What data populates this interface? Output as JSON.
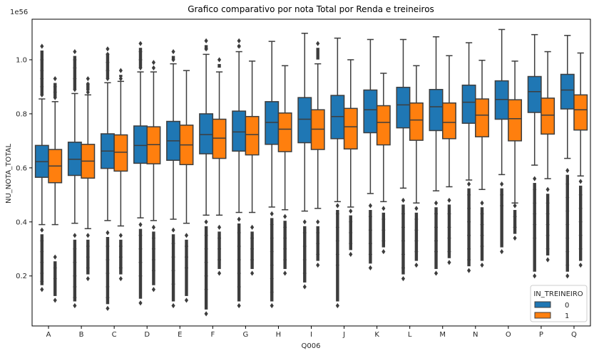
{
  "chart_data": {
    "type": "box",
    "title": "Grafico comparativo por nota Total por Renda e treineiros",
    "xlabel": "Q006",
    "ylabel": "NU_NOTA_TOTAL",
    "y_scale_label": "1e56",
    "ylim": [
      0.015,
      1.15
    ],
    "yticks": [
      "0.2",
      "0.4",
      "0.6",
      "0.8",
      "1.0"
    ],
    "ytick_values": [
      0.2,
      0.4,
      0.6,
      0.8,
      1.0
    ],
    "categories": [
      "A",
      "B",
      "C",
      "D",
      "E",
      "F",
      "G",
      "H",
      "I",
      "J",
      "K",
      "L",
      "M",
      "N",
      "O",
      "P",
      "Q"
    ],
    "legend": {
      "title": "IN_TREINEIRO",
      "position": "lower right"
    },
    "series": [
      {
        "name": "0",
        "color": "#1f77b4",
        "boxes": [
          {
            "whislo": 0.39,
            "q1": 0.565,
            "med": 0.623,
            "q3": 0.683,
            "whishi": 0.855,
            "fliers_low": [
              0.15,
              0.18,
              0.21,
              0.25,
              0.29,
              0.33,
              0.37
            ],
            "fliers_high": [
              0.87,
              0.9,
              0.93,
              0.96,
              1.0,
              1.05
            ]
          },
          {
            "whislo": 0.395,
            "q1": 0.572,
            "med": 0.632,
            "q3": 0.695,
            "whishi": 0.875,
            "fliers_low": [
              0.09,
              0.12,
              0.16,
              0.2,
              0.25,
              0.3,
              0.35
            ],
            "fliers_high": [
              0.89,
              0.93,
              0.97,
              1.0,
              1.03
            ]
          },
          {
            "whislo": 0.405,
            "q1": 0.598,
            "med": 0.662,
            "q3": 0.726,
            "whishi": 0.915,
            "fliers_low": [
              0.08,
              0.12,
              0.16,
              0.21,
              0.26,
              0.31,
              0.36
            ],
            "fliers_high": [
              0.93,
              0.96,
              0.99,
              1.02,
              1.04
            ]
          },
          {
            "whislo": 0.415,
            "q1": 0.617,
            "med": 0.683,
            "q3": 0.755,
            "whishi": 0.955,
            "fliers_low": [
              0.1,
              0.2,
              0.25,
              0.3,
              0.35,
              0.39
            ],
            "fliers_high": [
              0.97,
              1.0,
              1.03,
              1.06
            ]
          },
          {
            "whislo": 0.41,
            "q1": 0.628,
            "med": 0.7,
            "q3": 0.772,
            "whishi": 0.985,
            "fliers_low": [
              0.09,
              0.17,
              0.22,
              0.27,
              0.32,
              0.37
            ],
            "fliers_high": [
              1.0,
              1.03
            ]
          },
          {
            "whislo": 0.425,
            "q1": 0.652,
            "med": 0.723,
            "q3": 0.8,
            "whishi": 1.02,
            "fliers_low": [
              0.06,
              0.15,
              0.2,
              0.25,
              0.3,
              0.35,
              0.4
            ],
            "fliers_high": [
              1.04,
              1.07
            ]
          },
          {
            "whislo": 0.435,
            "q1": 0.662,
            "med": 0.733,
            "q3": 0.81,
            "whishi": 1.03,
            "fliers_low": [
              0.09,
              0.16,
              0.21,
              0.26,
              0.31,
              0.36,
              0.41
            ],
            "fliers_high": [
              1.05,
              1.07
            ]
          },
          {
            "whislo": 0.455,
            "q1": 0.687,
            "med": 0.768,
            "q3": 0.845,
            "whishi": 1.068,
            "fliers_low": [
              0.09,
              0.14,
              0.19,
              0.24,
              0.29,
              0.34,
              0.39,
              0.43
            ],
            "fliers_high": []
          },
          {
            "whislo": 0.44,
            "q1": 0.693,
            "med": 0.78,
            "q3": 0.86,
            "whishi": 1.098,
            "fliers_low": [
              0.16,
              0.21,
              0.26,
              0.31,
              0.36,
              0.4
            ],
            "fliers_high": []
          },
          {
            "whislo": 0.475,
            "q1": 0.708,
            "med": 0.79,
            "q3": 0.868,
            "whishi": 1.08,
            "fliers_low": [
              0.09,
              0.24,
              0.28,
              0.33,
              0.38,
              0.43,
              0.46
            ],
            "fliers_high": []
          },
          {
            "whislo": 0.505,
            "q1": 0.73,
            "med": 0.815,
            "q3": 0.888,
            "whishi": 1.075,
            "fliers_low": [
              0.23,
              0.28,
              0.32,
              0.37,
              0.42,
              0.46
            ],
            "fliers_high": []
          },
          {
            "whislo": 0.525,
            "q1": 0.748,
            "med": 0.833,
            "q3": 0.898,
            "whishi": 1.075,
            "fliers_low": [
              0.19,
              0.23,
              0.28,
              0.33,
              0.38,
              0.43,
              0.48
            ],
            "fliers_high": []
          },
          {
            "whislo": 0.515,
            "q1": 0.738,
            "med": 0.826,
            "q3": 0.89,
            "whishi": 1.085,
            "fliers_low": [
              0.21,
              0.29,
              0.33,
              0.38,
              0.43,
              0.47
            ],
            "fliers_high": []
          },
          {
            "whislo": 0.555,
            "q1": 0.765,
            "med": 0.843,
            "q3": 0.906,
            "whishi": 1.063,
            "fliers_low": [
              0.22,
              0.26,
              0.3,
              0.35,
              0.4,
              0.45,
              0.5,
              0.54
            ],
            "fliers_high": []
          },
          {
            "whislo": 0.575,
            "q1": 0.78,
            "med": 0.853,
            "q3": 0.922,
            "whishi": 1.112,
            "fliers_low": [
              0.29,
              0.46,
              0.5,
              0.54
            ],
            "fliers_high": []
          },
          {
            "whislo": 0.61,
            "q1": 0.805,
            "med": 0.882,
            "q3": 0.938,
            "whishi": 1.093,
            "fliers_low": [
              0.2,
              0.34,
              0.39,
              0.43,
              0.47,
              0.52,
              0.56
            ],
            "fliers_high": []
          },
          {
            "whislo": 0.635,
            "q1": 0.818,
            "med": 0.888,
            "q3": 0.946,
            "whishi": 1.09,
            "fliers_low": [
              0.2,
              0.24,
              0.29,
              0.34,
              0.39,
              0.44,
              0.49,
              0.54,
              0.59
            ],
            "fliers_high": []
          }
        ]
      },
      {
        "name": "1",
        "color": "#ff7f0e",
        "boxes": [
          {
            "whislo": 0.39,
            "q1": 0.545,
            "med": 0.607,
            "q3": 0.668,
            "whishi": 0.845,
            "fliers_low": [
              0.11,
              0.19,
              0.23,
              0.27
            ],
            "fliers_high": [
              0.86,
              0.88,
              0.9,
              0.93
            ]
          },
          {
            "whislo": 0.375,
            "q1": 0.562,
            "med": 0.625,
            "q3": 0.687,
            "whishi": 0.87,
            "fliers_low": [
              0.19,
              0.23,
              0.27,
              0.31,
              0.35
            ],
            "fliers_high": [
              0.88,
              0.91,
              0.93
            ]
          },
          {
            "whislo": 0.385,
            "q1": 0.588,
            "med": 0.658,
            "q3": 0.722,
            "whishi": 0.92,
            "fliers_low": [
              0.19,
              0.23,
              0.27,
              0.31,
              0.35
            ],
            "fliers_high": [
              0.93,
              0.96
            ]
          },
          {
            "whislo": 0.405,
            "q1": 0.615,
            "med": 0.686,
            "q3": 0.752,
            "whishi": 0.955,
            "fliers_low": [
              0.15,
              0.22,
              0.26,
              0.3,
              0.34,
              0.38
            ],
            "fliers_high": [
              0.97,
              0.99
            ]
          },
          {
            "whislo": 0.395,
            "q1": 0.612,
            "med": 0.685,
            "q3": 0.758,
            "whishi": 0.96,
            "fliers_low": [
              0.11,
              0.23,
              0.27,
              0.31,
              0.35
            ],
            "fliers_high": []
          },
          {
            "whislo": 0.425,
            "q1": 0.635,
            "med": 0.71,
            "q3": 0.78,
            "whishi": 0.955,
            "fliers_low": [
              0.21,
              0.26,
              0.3,
              0.34,
              0.38
            ],
            "fliers_high": [
              1.0
            ]
          },
          {
            "whislo": 0.435,
            "q1": 0.648,
            "med": 0.723,
            "q3": 0.79,
            "whishi": 0.995,
            "fliers_low": [
              0.21,
              0.26,
              0.3,
              0.34,
              0.38
            ],
            "fliers_high": []
          },
          {
            "whislo": 0.445,
            "q1": 0.66,
            "med": 0.743,
            "q3": 0.803,
            "whishi": 0.978,
            "fliers_low": [
              0.21,
              0.26,
              0.3,
              0.34,
              0.38,
              0.42
            ],
            "fliers_high": []
          },
          {
            "whislo": 0.45,
            "q1": 0.668,
            "med": 0.743,
            "q3": 0.815,
            "whishi": 0.985,
            "fliers_low": [
              0.24,
              0.28,
              0.32,
              0.36,
              0.4
            ],
            "fliers_high": [
              1.06
            ]
          },
          {
            "whislo": 0.455,
            "q1": 0.67,
            "med": 0.752,
            "q3": 0.82,
            "whishi": 1.0,
            "fliers_low": [
              0.28,
              0.32,
              0.36,
              0.4,
              0.44
            ],
            "fliers_high": []
          },
          {
            "whislo": 0.475,
            "q1": 0.685,
            "med": 0.768,
            "q3": 0.83,
            "whishi": 0.95,
            "fliers_low": [
              0.29,
              0.33,
              0.37,
              0.41,
              0.45
            ],
            "fliers_high": []
          },
          {
            "whislo": 0.47,
            "q1": 0.702,
            "med": 0.777,
            "q3": 0.84,
            "whishi": 0.978,
            "fliers_low": [
              0.24,
              0.29,
              0.33,
              0.37,
              0.41,
              0.45
            ],
            "fliers_high": []
          },
          {
            "whislo": 0.53,
            "q1": 0.708,
            "med": 0.768,
            "q3": 0.84,
            "whishi": 1.015,
            "fliers_low": [
              0.25,
              0.29,
              0.34,
              0.38,
              0.43,
              0.48
            ],
            "fliers_high": []
          },
          {
            "whislo": 0.52,
            "q1": 0.715,
            "med": 0.795,
            "q3": 0.855,
            "whishi": 0.998,
            "fliers_low": [
              0.24,
              0.31,
              0.35,
              0.39,
              0.43,
              0.47
            ],
            "fliers_high": []
          },
          {
            "whislo": 0.47,
            "q1": 0.7,
            "med": 0.782,
            "q3": 0.852,
            "whishi": 0.995,
            "fliers_low": [
              0.34,
              0.38,
              0.42,
              0.46
            ],
            "fliers_high": []
          },
          {
            "whislo": 0.56,
            "q1": 0.725,
            "med": 0.795,
            "q3": 0.858,
            "whishi": 1.03,
            "fliers_low": [
              0.26,
              0.3,
              0.35,
              0.39,
              0.43,
              0.47,
              0.52
            ],
            "fliers_high": []
          },
          {
            "whislo": 0.57,
            "q1": 0.74,
            "med": 0.815,
            "q3": 0.87,
            "whishi": 1.025,
            "fliers_low": [
              0.24,
              0.3,
              0.35,
              0.4,
              0.45,
              0.5,
              0.55
            ],
            "fliers_high": []
          }
        ]
      }
    ]
  }
}
